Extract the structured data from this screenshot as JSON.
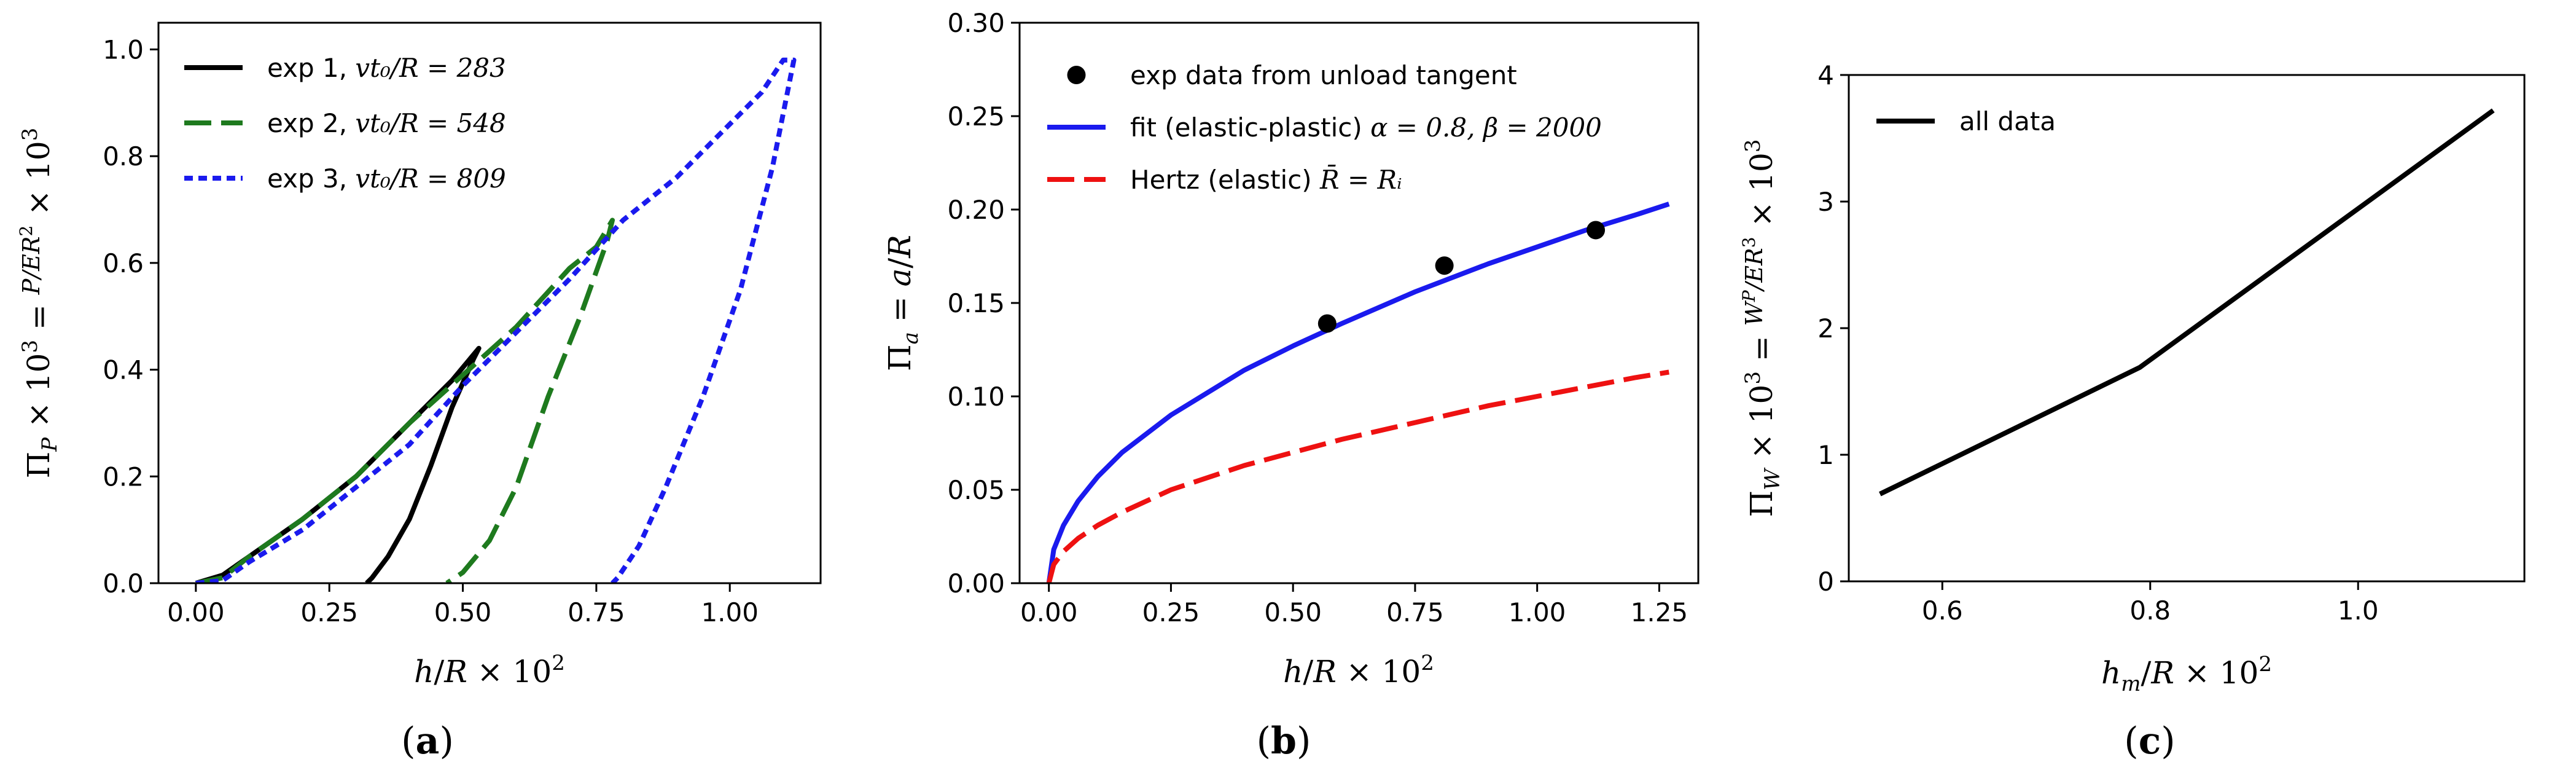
{
  "figure": {
    "panels": [
      {
        "label_prefix": "(",
        "label_letter": "a",
        "label_suffix": ")"
      },
      {
        "label_prefix": "(",
        "label_letter": "b",
        "label_suffix": ")"
      },
      {
        "label_prefix": "(",
        "label_letter": "c",
        "label_suffix": ")"
      }
    ]
  },
  "chart_data": [
    {
      "type": "line",
      "xlabel": "h/R × 10²",
      "ylabel": "Π_P × 10³ = P/(ER²) × 10³",
      "xlim": [
        -0.07,
        1.17
      ],
      "ylim": [
        0.0,
        1.05
      ],
      "xticks": [
        0.0,
        0.25,
        0.5,
        0.75,
        1.0
      ],
      "xtick_labels": [
        "0.00",
        "0.25",
        "0.50",
        "0.75",
        "1.00"
      ],
      "yticks": [
        0.0,
        0.2,
        0.4,
        0.6,
        0.8,
        1.0
      ],
      "ytick_labels": [
        "0.0",
        "0.2",
        "0.4",
        "0.6",
        "0.8",
        "1.0"
      ],
      "legend_position": "top-left",
      "series": [
        {
          "name": "exp 1, vt0/R = 283",
          "legend_text": "exp 1,",
          "legend_math": "vt₀/R = 283",
          "color": "#000000",
          "style": "solid",
          "points": [
            [
              0.0,
              0.0
            ],
            [
              0.05,
              0.015
            ],
            [
              0.1,
              0.05
            ],
            [
              0.2,
              0.12
            ],
            [
              0.3,
              0.2
            ],
            [
              0.4,
              0.3
            ],
            [
              0.48,
              0.38
            ],
            [
              0.53,
              0.44
            ],
            [
              0.52,
              0.42
            ],
            [
              0.48,
              0.33
            ],
            [
              0.44,
              0.22
            ],
            [
              0.4,
              0.12
            ],
            [
              0.36,
              0.05
            ],
            [
              0.33,
              0.01
            ],
            [
              0.32,
              0.0
            ]
          ]
        },
        {
          "name": "exp 2, vt0/R = 548",
          "legend_text": "exp 2,",
          "legend_math": "vt₀/R = 548",
          "color": "#1e7a1e",
          "style": "dashed",
          "points": [
            [
              0.0,
              0.0
            ],
            [
              0.05,
              0.01
            ],
            [
              0.1,
              0.05
            ],
            [
              0.2,
              0.12
            ],
            [
              0.3,
              0.2
            ],
            [
              0.4,
              0.3
            ],
            [
              0.5,
              0.39
            ],
            [
              0.6,
              0.48
            ],
            [
              0.7,
              0.59
            ],
            [
              0.75,
              0.63
            ],
            [
              0.78,
              0.68
            ],
            [
              0.77,
              0.64
            ],
            [
              0.72,
              0.5
            ],
            [
              0.66,
              0.35
            ],
            [
              0.6,
              0.18
            ],
            [
              0.55,
              0.08
            ],
            [
              0.5,
              0.02
            ],
            [
              0.47,
              0.0
            ]
          ]
        },
        {
          "name": "exp 3, vt0/R = 809",
          "legend_text": "exp 3,",
          "legend_math": "vt₀/R = 809",
          "color": "#1a1aee",
          "style": "dotted",
          "points": [
            [
              0.0,
              0.0
            ],
            [
              0.05,
              0.005
            ],
            [
              0.1,
              0.04
            ],
            [
              0.2,
              0.1
            ],
            [
              0.3,
              0.18
            ],
            [
              0.4,
              0.26
            ],
            [
              0.5,
              0.37
            ],
            [
              0.6,
              0.47
            ],
            [
              0.7,
              0.57
            ],
            [
              0.8,
              0.68
            ],
            [
              0.9,
              0.76
            ],
            [
              1.0,
              0.86
            ],
            [
              1.06,
              0.92
            ],
            [
              1.1,
              0.98
            ],
            [
              1.12,
              0.98
            ],
            [
              1.08,
              0.78
            ],
            [
              1.02,
              0.55
            ],
            [
              0.95,
              0.35
            ],
            [
              0.88,
              0.18
            ],
            [
              0.83,
              0.07
            ],
            [
              0.79,
              0.01
            ],
            [
              0.78,
              0.0
            ]
          ]
        }
      ]
    },
    {
      "type": "line",
      "xlabel": "h/R × 10²",
      "ylabel": "Π_a = a/R",
      "xlim": [
        -0.06,
        1.33
      ],
      "ylim": [
        0.0,
        0.3
      ],
      "xticks": [
        0.0,
        0.25,
        0.5,
        0.75,
        1.0,
        1.25
      ],
      "xtick_labels": [
        "0.00",
        "0.25",
        "0.50",
        "0.75",
        "1.00",
        "1.25"
      ],
      "yticks": [
        0.0,
        0.05,
        0.1,
        0.15,
        0.2,
        0.25,
        0.3
      ],
      "ytick_labels": [
        "0.00",
        "0.05",
        "0.10",
        "0.15",
        "0.20",
        "0.25",
        "0.30"
      ],
      "legend_position": "top-right",
      "scatter": {
        "name": "exp data from unload tangent",
        "legend_text": "exp data from unload tangent",
        "color": "#000000",
        "x": [
          0.57,
          0.81,
          1.12
        ],
        "y": [
          0.139,
          0.17,
          0.189
        ]
      },
      "series": [
        {
          "name": "fit (elastic-plastic) α = 0.8, β = 2000",
          "legend_text": "fit (elastic-plastic)",
          "legend_math": "α = 0.8, β = 2000",
          "color": "#1a1aee",
          "style": "solid",
          "points": [
            [
              0.0,
              0.0
            ],
            [
              0.01,
              0.018
            ],
            [
              0.03,
              0.031
            ],
            [
              0.06,
              0.044
            ],
            [
              0.1,
              0.057
            ],
            [
              0.15,
              0.07
            ],
            [
              0.25,
              0.09
            ],
            [
              0.4,
              0.114
            ],
            [
              0.5,
              0.127
            ],
            [
              0.6,
              0.139
            ],
            [
              0.75,
              0.156
            ],
            [
              0.9,
              0.171
            ],
            [
              1.0,
              0.18
            ],
            [
              1.1,
              0.189
            ],
            [
              1.2,
              0.197
            ],
            [
              1.27,
              0.203
            ]
          ]
        },
        {
          "name": "Hertz (elastic) R̄ = R_i",
          "legend_text": "Hertz (elastic)",
          "legend_math": "R̄ = Rᵢ",
          "color": "#ee1111",
          "style": "dashed",
          "points": [
            [
              0.0,
              0.0
            ],
            [
              0.01,
              0.01
            ],
            [
              0.03,
              0.017
            ],
            [
              0.06,
              0.024
            ],
            [
              0.1,
              0.031
            ],
            [
              0.15,
              0.038
            ],
            [
              0.25,
              0.05
            ],
            [
              0.4,
              0.063
            ],
            [
              0.5,
              0.07
            ],
            [
              0.6,
              0.077
            ],
            [
              0.75,
              0.086
            ],
            [
              0.9,
              0.095
            ],
            [
              1.0,
              0.1
            ],
            [
              1.1,
              0.105
            ],
            [
              1.2,
              0.11
            ],
            [
              1.27,
              0.113
            ]
          ]
        }
      ]
    },
    {
      "type": "line",
      "xlabel": "h_m/R × 10²",
      "ylabel": "Π_W × 10³ = W^P/(ER³) × 10³",
      "xlim": [
        0.51,
        1.16
      ],
      "ylim": [
        0.0,
        4.0
      ],
      "xticks": [
        0.6,
        0.8,
        1.0
      ],
      "xtick_labels": [
        "0.6",
        "0.8",
        "1.0"
      ],
      "yticks": [
        0,
        1,
        2,
        3,
        4
      ],
      "ytick_labels": [
        "0",
        "1",
        "2",
        "3",
        "4"
      ],
      "legend_position": "top-left",
      "series": [
        {
          "name": "all data",
          "legend_text": "all data",
          "color": "#000000",
          "style": "solid",
          "points": [
            [
              0.54,
              0.69
            ],
            [
              0.79,
              1.69
            ],
            [
              1.13,
              3.72
            ]
          ]
        }
      ]
    }
  ]
}
